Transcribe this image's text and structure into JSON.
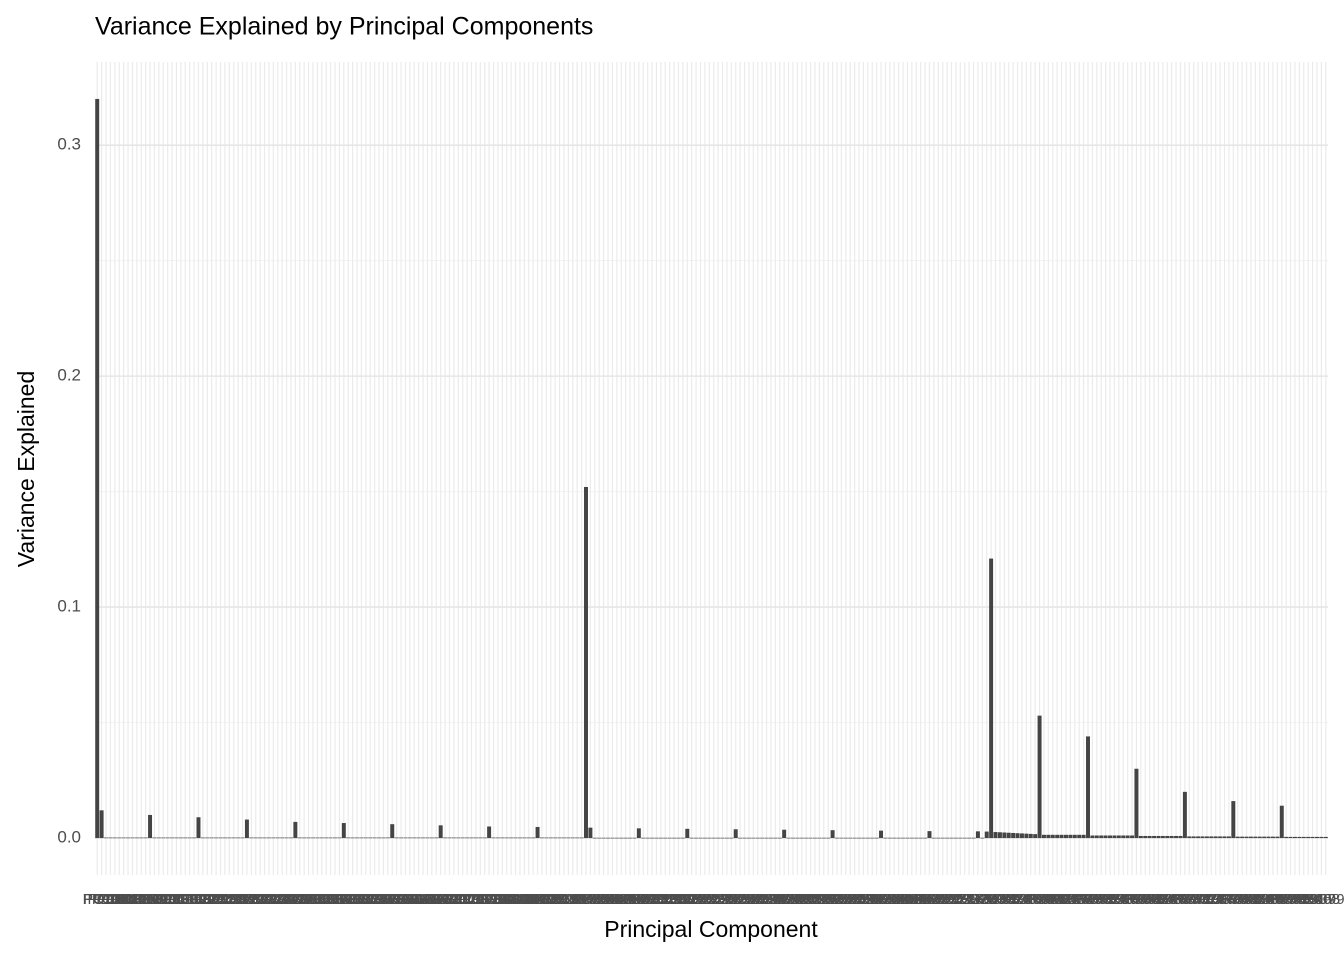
{
  "chart_data": {
    "type": "bar",
    "title": "Variance Explained by Principal Components",
    "x_label": "Principal Component",
    "y_label": "Variance Explained",
    "color": "#444444",
    "grid": true,
    "categories": [
      "PC1",
      "PC10",
      "PC100",
      "PC101",
      "PC102",
      "PC103",
      "PC104",
      "PC105",
      "PC106",
      "PC107",
      "PC108",
      "PC109",
      "PC11",
      "PC110",
      "PC111",
      "PC112",
      "PC113",
      "PC114",
      "PC115",
      "PC116",
      "PC117",
      "PC118",
      "PC119",
      "PC12",
      "PC120",
      "PC121",
      "PC122",
      "PC123",
      "PC124",
      "PC125",
      "PC126",
      "PC127",
      "PC128",
      "PC129",
      "PC13",
      "PC130",
      "PC131",
      "PC132",
      "PC133",
      "PC134",
      "PC135",
      "PC136",
      "PC137",
      "PC138",
      "PC139",
      "PC14",
      "PC140",
      "PC141",
      "PC142",
      "PC143",
      "PC144",
      "PC145",
      "PC146",
      "PC147",
      "PC148",
      "PC149",
      "PC15",
      "PC150",
      "PC151",
      "PC152",
      "PC153",
      "PC154",
      "PC155",
      "PC156",
      "PC157",
      "PC158",
      "PC159",
      "PC16",
      "PC160",
      "PC161",
      "PC162",
      "PC163",
      "PC164",
      "PC165",
      "PC166",
      "PC167",
      "PC168",
      "PC169",
      "PC17",
      "PC170",
      "PC171",
      "PC172",
      "PC173",
      "PC174",
      "PC175",
      "PC176",
      "PC177",
      "PC178",
      "PC179",
      "PC18",
      "PC180",
      "PC181",
      "PC182",
      "PC183",
      "PC184",
      "PC185",
      "PC186",
      "PC187",
      "PC188",
      "PC189",
      "PC19",
      "PC190",
      "PC191",
      "PC192",
      "PC193",
      "PC194",
      "PC195",
      "PC196",
      "PC197",
      "PC198",
      "PC199",
      "PC2",
      "PC20",
      "PC200",
      "PC201",
      "PC202",
      "PC203",
      "PC204",
      "PC205",
      "PC206",
      "PC207",
      "PC208",
      "PC209",
      "PC21",
      "PC210",
      "PC211",
      "PC212",
      "PC213",
      "PC214",
      "PC215",
      "PC216",
      "PC217",
      "PC218",
      "PC219",
      "PC22",
      "PC220",
      "PC221",
      "PC222",
      "PC223",
      "PC224",
      "PC225",
      "PC226",
      "PC227",
      "PC228",
      "PC229",
      "PC23",
      "PC230",
      "PC231",
      "PC232",
      "PC233",
      "PC234",
      "PC235",
      "PC236",
      "PC237",
      "PC238",
      "PC239",
      "PC24",
      "PC240",
      "PC241",
      "PC242",
      "PC243",
      "PC244",
      "PC245",
      "PC246",
      "PC247",
      "PC248",
      "PC249",
      "PC25",
      "PC250",
      "PC251",
      "PC252",
      "PC253",
      "PC254",
      "PC255",
      "PC256",
      "PC257",
      "PC258",
      "PC259",
      "PC26",
      "PC260",
      "PC261",
      "PC262",
      "PC263",
      "PC264",
      "PC265",
      "PC266",
      "PC267",
      "PC268",
      "PC269",
      "PC27",
      "PC270",
      "PC271",
      "PC272",
      "PC273",
      "PC274",
      "PC275",
      "PC276",
      "PC277",
      "PC278",
      "PC279",
      "PC28",
      "PC280",
      "PC29",
      "PC3",
      "PC30",
      "PC31",
      "PC32",
      "PC33",
      "PC34",
      "PC35",
      "PC36",
      "PC37",
      "PC38",
      "PC39",
      "PC4",
      "PC40",
      "PC41",
      "PC42",
      "PC43",
      "PC44",
      "PC45",
      "PC46",
      "PC47",
      "PC48",
      "PC49",
      "PC5",
      "PC50",
      "PC51",
      "PC52",
      "PC53",
      "PC54",
      "PC55",
      "PC56",
      "PC57",
      "PC58",
      "PC59",
      "PC6",
      "PC60",
      "PC61",
      "PC62",
      "PC63",
      "PC64",
      "PC65",
      "PC66",
      "PC67",
      "PC68",
      "PC69",
      "PC7",
      "PC70",
      "PC71",
      "PC72",
      "PC73",
      "PC74",
      "PC75",
      "PC76",
      "PC77",
      "PC78",
      "PC79",
      "PC8",
      "PC80",
      "PC81",
      "PC82",
      "PC83",
      "PC84",
      "PC85",
      "PC86",
      "PC87",
      "PC88",
      "PC89",
      "PC9",
      "PC90",
      "PC91",
      "PC92",
      "PC93",
      "PC94",
      "PC95",
      "PC96",
      "PC97",
      "PC98",
      "PC99"
    ],
    "values": [
      0.32,
      0.012,
      0.0002,
      0.0002,
      0.0002,
      0.0002,
      0.0002,
      0.0002,
      0.0002,
      0.0002,
      0.0002,
      0.0002,
      0.01,
      0.0002,
      0.0002,
      0.0002,
      0.0002,
      0.0002,
      0.0002,
      0.0002,
      0.0002,
      0.0002,
      0.0002,
      0.009,
      0.0002,
      0.0002,
      0.0002,
      0.0002,
      0.0002,
      0.0002,
      0.0002,
      0.0002,
      0.0002,
      0.0002,
      0.008,
      0.0002,
      0.0002,
      0.0002,
      0.0002,
      0.0002,
      0.0002,
      0.0002,
      0.0002,
      0.0002,
      0.0002,
      0.007,
      0.0002,
      0.0002,
      0.0002,
      0.0002,
      0.0002,
      0.0002,
      0.0002,
      0.0002,
      0.0002,
      0.0002,
      0.0065,
      0.0002,
      0.0002,
      0.0002,
      0.0002,
      0.0002,
      0.0002,
      0.0002,
      0.0002,
      0.0002,
      0.0002,
      0.006,
      0.0002,
      0.0002,
      0.0002,
      0.0002,
      0.0002,
      0.0002,
      0.0002,
      0.0002,
      0.0002,
      0.0002,
      0.0055,
      0.0002,
      0.0002,
      0.0002,
      0.0002,
      0.0002,
      0.0002,
      0.0002,
      0.0002,
      0.0002,
      0.0002,
      0.005,
      0.0002,
      0.0002,
      0.0002,
      0.0002,
      0.0002,
      0.0002,
      0.0002,
      0.0002,
      0.0002,
      0.0002,
      0.0048,
      0.0002,
      0.0002,
      0.0002,
      0.0002,
      0.0002,
      0.0002,
      0.0002,
      0.0002,
      0.0002,
      0.0002,
      0.152,
      0.0045,
      0.0001,
      0.0001,
      0.0001,
      0.0001,
      0.0001,
      0.0001,
      0.0001,
      0.0001,
      0.0001,
      0.0001,
      0.0042,
      0.0001,
      0.0001,
      0.0001,
      0.0001,
      0.0001,
      0.0001,
      0.0001,
      0.0001,
      0.0001,
      0.0001,
      0.004,
      0.0001,
      0.0001,
      0.0001,
      0.0001,
      0.0001,
      0.0001,
      0.0001,
      0.0001,
      0.0001,
      0.0001,
      0.0038,
      0.0001,
      0.0001,
      0.0001,
      0.0001,
      0.0001,
      0.0001,
      0.0001,
      0.0001,
      0.0001,
      0.0001,
      0.0036,
      0.0001,
      0.0001,
      0.0001,
      0.0001,
      0.0001,
      0.0001,
      0.0001,
      0.0001,
      0.0001,
      0.0001,
      0.0034,
      0.0001,
      0.0001,
      0.0001,
      0.0001,
      0.0001,
      0.0001,
      0.0001,
      0.0001,
      0.0001,
      0.0001,
      0.0032,
      0.0001,
      0.0001,
      0.0001,
      0.0001,
      0.0001,
      0.0001,
      0.0001,
      0.0001,
      0.0001,
      0.0001,
      0.003,
      0.0001,
      0.0001,
      0.0001,
      0.0001,
      0.0001,
      0.0001,
      0.0001,
      0.0001,
      0.0001,
      0.0001,
      0.0029,
      0.0001,
      0.0028,
      0.121,
      0.0026,
      0.0025,
      0.0024,
      0.0023,
      0.0022,
      0.0021,
      0.002,
      0.0019,
      0.0018,
      0.0017,
      0.053,
      0.0014,
      0.0014,
      0.0014,
      0.0014,
      0.0014,
      0.0014,
      0.0014,
      0.0014,
      0.0014,
      0.0014,
      0.044,
      0.0011,
      0.0011,
      0.0011,
      0.0011,
      0.0011,
      0.0011,
      0.0011,
      0.0011,
      0.0011,
      0.0011,
      0.03,
      0.0009,
      0.0009,
      0.0009,
      0.0009,
      0.0009,
      0.0009,
      0.0009,
      0.0009,
      0.0009,
      0.0009,
      0.02,
      0.0007,
      0.0007,
      0.0007,
      0.0007,
      0.0007,
      0.0007,
      0.0007,
      0.0007,
      0.0007,
      0.0007,
      0.016,
      0.0006,
      0.0006,
      0.0006,
      0.0006,
      0.0006,
      0.0006,
      0.0006,
      0.0006,
      0.0006,
      0.0006,
      0.014,
      0.0005,
      0.0005,
      0.0005,
      0.0005,
      0.0005,
      0.0005,
      0.0005,
      0.0005,
      0.0005,
      0.0005
    ],
    "ylim": [
      -0.016,
      0.336
    ],
    "yticks": [
      {
        "value": 0,
        "label": "0.0"
      },
      {
        "value": 0.1,
        "label": "0.1"
      },
      {
        "value": 0.2,
        "label": "0.2"
      },
      {
        "value": 0.3,
        "label": "0.3"
      }
    ]
  }
}
